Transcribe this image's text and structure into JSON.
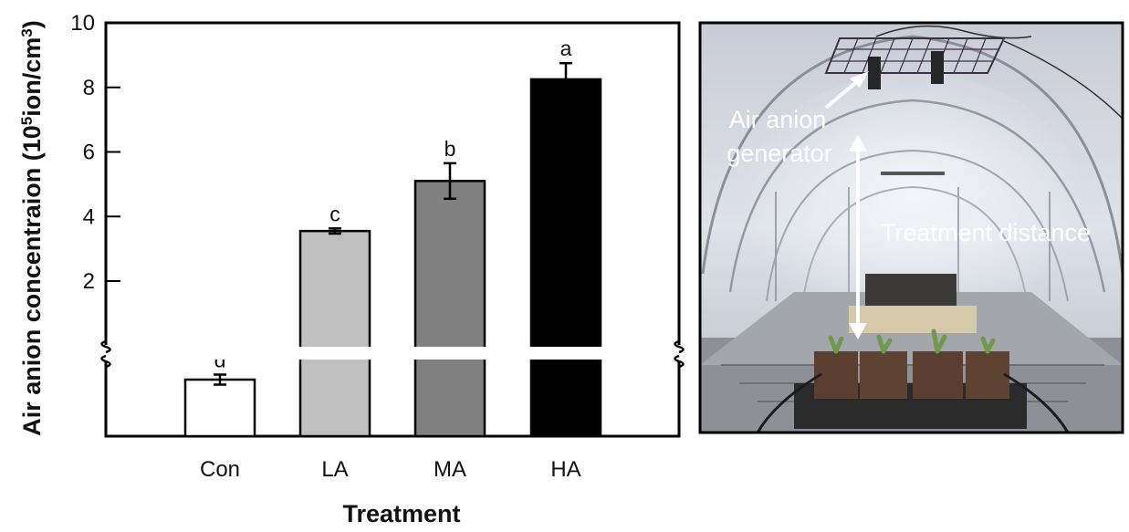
{
  "chart_data": {
    "type": "bar",
    "categories": [
      "Con",
      "LA",
      "MA",
      "HA"
    ],
    "values": [
      0.2,
      3.55,
      5.1,
      8.25
    ],
    "errors": [
      0.05,
      0.08,
      0.55,
      0.5
    ],
    "significance": [
      "d",
      "c",
      "b",
      "a"
    ],
    "bar_colors": [
      "#ffffff",
      "#c0c0c0",
      "#808080",
      "#000000"
    ],
    "xlabel": "Treatment",
    "ylabel_main": "Air anion concentraion (10",
    "ylabel_sup": "5",
    "ylabel_rest": "ion/cm",
    "ylabel_sup2": "3",
    "ylabel_close": ")",
    "yticks": [
      "2",
      "4",
      "6",
      "8",
      "10"
    ],
    "ylim": [
      0,
      10
    ],
    "axis_break": true
  },
  "photo": {
    "caption_generator_line1": "Air anion",
    "caption_generator_line2": "generator",
    "caption_distance": "Treatment distance"
  }
}
